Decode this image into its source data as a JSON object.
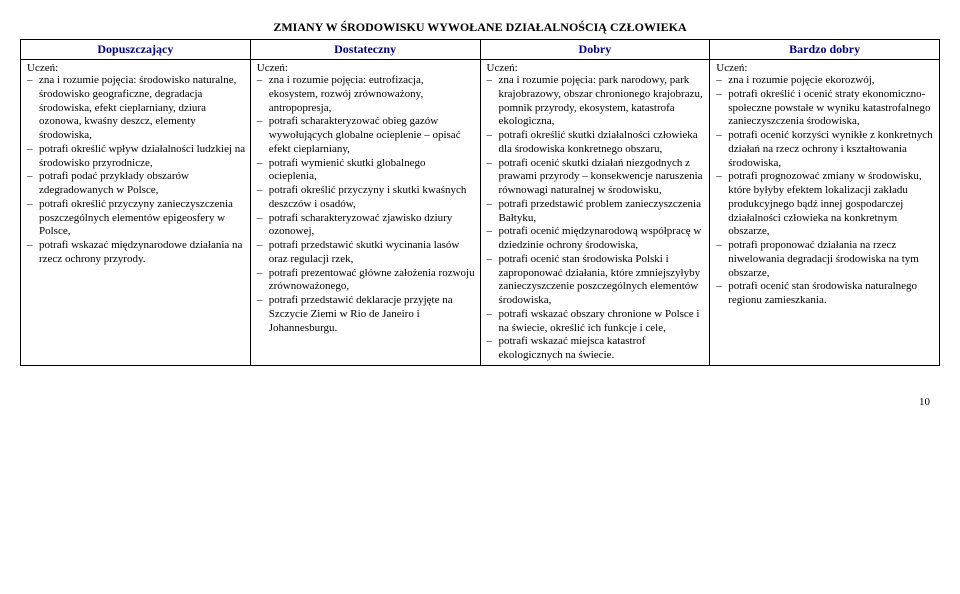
{
  "title": "ZMIANY W ŚRODOWISKU WYWOŁANE DZIAŁALNOŚCIĄ CZŁOWIEKA",
  "headers": [
    "Dopuszczający",
    "Dostateczny",
    "Dobry",
    "Bardzo dobry"
  ],
  "label": "Uczeń:",
  "cols": [
    {
      "items": [
        "zna i rozumie pojęcia: środowisko naturalne, środowisko geograficzne, degradacja środowiska, efekt cieplarniany, dziura ozonowa, kwaśny deszcz, elementy środowiska,",
        "potrafi określić wpływ działalności ludzkiej na środowisko przyrodnicze,",
        "potrafi podać przykłady obszarów zdegradowanych w Polsce,",
        "potrafi określić przyczyny zanieczyszczenia poszczególnych elementów epigeosfery w Polsce,",
        "potrafi wskazać międzynarodowe działania na rzecz ochrony przyrody."
      ]
    },
    {
      "items": [
        "zna i rozumie pojęcia: eutrofizacja, ekosystem, rozwój zrównoważony, antropopresja,",
        "potrafi scharakteryzować obieg gazów wywołujących globalne ocieplenie – opisać efekt cieplarniany,",
        "potrafi wymienić skutki globalnego ocieplenia,",
        "potrafi określić przyczyny i skutki kwaśnych deszczów i osadów,",
        "potrafi scharakteryzować zjawisko dziury ozonowej,",
        "potrafi przedstawić skutki wycinania lasów oraz regulacji rzek,",
        "potrafi prezentować główne założenia rozwoju zrównoważonego,",
        "potrafi przedstawić deklaracje przyjęte na Szczycie Ziemi w Rio de Janeiro i Johannesburgu."
      ]
    },
    {
      "items": [
        "zna i rozumie pojęcia: park narodowy, park krajobrazowy, obszar chronionego krajobrazu, pomnik przyrody, ekosystem, katastrofa ekologiczna,",
        "potrafi określić skutki działalności człowieka dla środowiska konkretnego obszaru,",
        "potrafi ocenić skutki działań niezgodnych z prawami przyrody – konsekwencje naruszenia równowagi naturalnej w środowisku,",
        "potrafi przedstawić problem zanieczyszczenia Bałtyku,",
        "potrafi ocenić międzynarodową współpracę w dziedzinie ochrony środowiska,",
        "potrafi ocenić stan środowiska Polski i zaproponować działania, które zmniejszyłyby zanieczyszczenie poszczególnych elementów środowiska,",
        "potrafi wskazać obszary chronione w Polsce i na świecie, określić ich funkcje i cele,",
        "potrafi wskazać miejsca katastrof ekologicznych na świecie."
      ]
    },
    {
      "items": [
        "zna i rozumie pojęcie ekorozwój,",
        "potrafi określić i ocenić straty ekonomiczno-społeczne powstałe w wyniku katastrofalnego zanieczyszczenia środowiska,",
        "potrafi ocenić korzyści wynikłe z konkretnych działań na rzecz ochrony i kształtowania środowiska,",
        "potrafi prognozować zmiany w środowisku, które byłyby efektem lokalizacji zakładu produkcyjnego bądź innej gospodarczej działalności człowieka na konkretnym obszarze,",
        "potrafi proponować działania na rzecz niwelowania degradacji środowiska na tym obszarze,",
        "potrafi ocenić stan środowiska naturalnego regionu zamieszkania."
      ]
    }
  ],
  "page_number": "10"
}
